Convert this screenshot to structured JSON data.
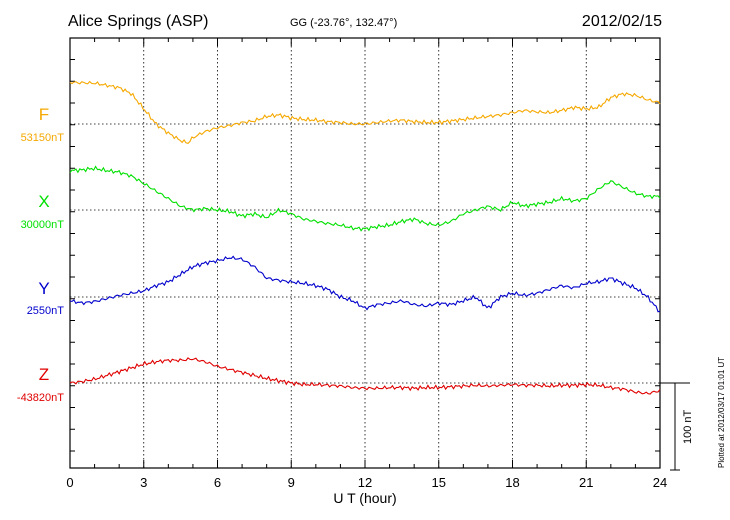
{
  "header": {
    "station": "Alice Springs (ASP)",
    "coords": "GG (-23.76°, 132.47°)",
    "date": "2012/02/15"
  },
  "side_note": "Plotted at 2012/03/17 01:01  UT",
  "scale_label": "100 nT",
  "chart_data": {
    "type": "line",
    "xlabel": "U T (hour)",
    "xlim": [
      0,
      24
    ],
    "xticks": [
      "0",
      "3",
      "6",
      "9",
      "12",
      "15",
      "18",
      "21",
      "24"
    ],
    "scale_nT": 100,
    "series": [
      {
        "name": "F",
        "baseline": "53150nT",
        "color": "#f5a800",
        "x": [
          0,
          1,
          2,
          2.5,
          3,
          3.5,
          4,
          4.5,
          4.8,
          5,
          5.5,
          6,
          6.5,
          7,
          7.5,
          8,
          8.5,
          9,
          9.5,
          10,
          10.5,
          11,
          11.5,
          12,
          12.5,
          13,
          13.5,
          14,
          14.5,
          15,
          15.5,
          16,
          16.5,
          17,
          17.5,
          18,
          18.5,
          19,
          19.5,
          20,
          20.5,
          21,
          21.5,
          22,
          22.5,
          23,
          23.5,
          24
        ],
        "y": [
          55,
          54,
          48,
          40,
          20,
          0,
          -12,
          -22,
          -25,
          -18,
          -10,
          -5,
          -2,
          2,
          4,
          10,
          12,
          8,
          6,
          5,
          3,
          2,
          0,
          0,
          2,
          4,
          5,
          3,
          2,
          2,
          4,
          6,
          8,
          10,
          12,
          15,
          18,
          16,
          15,
          18,
          22,
          20,
          22,
          35,
          40,
          38,
          32,
          28
        ]
      },
      {
        "name": "X",
        "baseline": "30000nT",
        "color": "#00e000",
        "x": [
          0,
          0.5,
          1,
          1.5,
          2,
          2.5,
          3,
          3.5,
          4,
          4.5,
          5,
          5.5,
          6,
          6.5,
          7,
          7.5,
          8,
          8.5,
          9,
          9.5,
          10,
          10.5,
          11,
          11.5,
          12,
          12.5,
          13,
          13.5,
          14,
          14.5,
          15,
          15.5,
          16,
          16.5,
          17,
          17.5,
          18,
          18.5,
          19,
          19.5,
          20,
          20.5,
          21,
          21.5,
          22,
          22.5,
          23,
          23.5,
          24
        ],
        "y": [
          52,
          53,
          55,
          52,
          50,
          45,
          35,
          25,
          15,
          5,
          0,
          2,
          0,
          -2,
          -8,
          -5,
          -10,
          0,
          -5,
          -12,
          -15,
          -18,
          -20,
          -24,
          -25,
          -22,
          -20,
          -15,
          -12,
          -18,
          -20,
          -15,
          -5,
          0,
          5,
          0,
          10,
          5,
          8,
          10,
          15,
          12,
          15,
          28,
          38,
          30,
          22,
          18,
          18
        ]
      },
      {
        "name": "Y",
        "baseline": "2550nT",
        "color": "#0000cc",
        "x": [
          0,
          0.5,
          1,
          1.5,
          2,
          2.5,
          3,
          3.5,
          4,
          4.5,
          5,
          5.5,
          6,
          6.5,
          7,
          7.5,
          8,
          8.5,
          9,
          9.5,
          10,
          10.5,
          11,
          11.5,
          12,
          12.5,
          13,
          13.5,
          14,
          14.5,
          15,
          15.5,
          16,
          16.5,
          17,
          17.5,
          18,
          18.5,
          19,
          19.5,
          20,
          20.5,
          21,
          21.5,
          22,
          22.5,
          23,
          23.5,
          24
        ],
        "y": [
          -5,
          -8,
          -6,
          -2,
          2,
          5,
          8,
          15,
          20,
          30,
          40,
          45,
          48,
          52,
          50,
          40,
          25,
          22,
          20,
          18,
          15,
          10,
          0,
          -5,
          -15,
          -10,
          -8,
          -5,
          -10,
          -12,
          -8,
          -10,
          -5,
          0,
          -15,
          0,
          5,
          2,
          5,
          10,
          15,
          12,
          18,
          20,
          25,
          18,
          12,
          0,
          -20
        ]
      },
      {
        "name": "Z",
        "baseline": "-43820nT",
        "color": "#e00000",
        "x": [
          0,
          0.5,
          1,
          1.5,
          2,
          2.5,
          3,
          3.5,
          4,
          4.5,
          5,
          5.5,
          6,
          6.5,
          7,
          7.5,
          8,
          8.5,
          9,
          9.5,
          10,
          10.5,
          11,
          11.5,
          12,
          12.5,
          13,
          13.5,
          14,
          14.5,
          15,
          15.5,
          16,
          16.5,
          17,
          17.5,
          18,
          18.5,
          19,
          19.5,
          20,
          20.5,
          21,
          21.5,
          22,
          22.5,
          23,
          23.5,
          24
        ],
        "y": [
          0,
          2,
          5,
          10,
          15,
          20,
          25,
          28,
          30,
          30,
          32,
          28,
          22,
          18,
          14,
          10,
          6,
          3,
          0,
          -2,
          -2,
          -3,
          -4,
          -6,
          -7,
          -7,
          -6,
          -6,
          -7,
          -6,
          -6,
          -5,
          -4,
          -3,
          -4,
          -3,
          -2,
          -3,
          -3,
          -4,
          -3,
          -3,
          -2,
          -3,
          -6,
          -8,
          -12,
          -14,
          -10
        ]
      }
    ]
  }
}
